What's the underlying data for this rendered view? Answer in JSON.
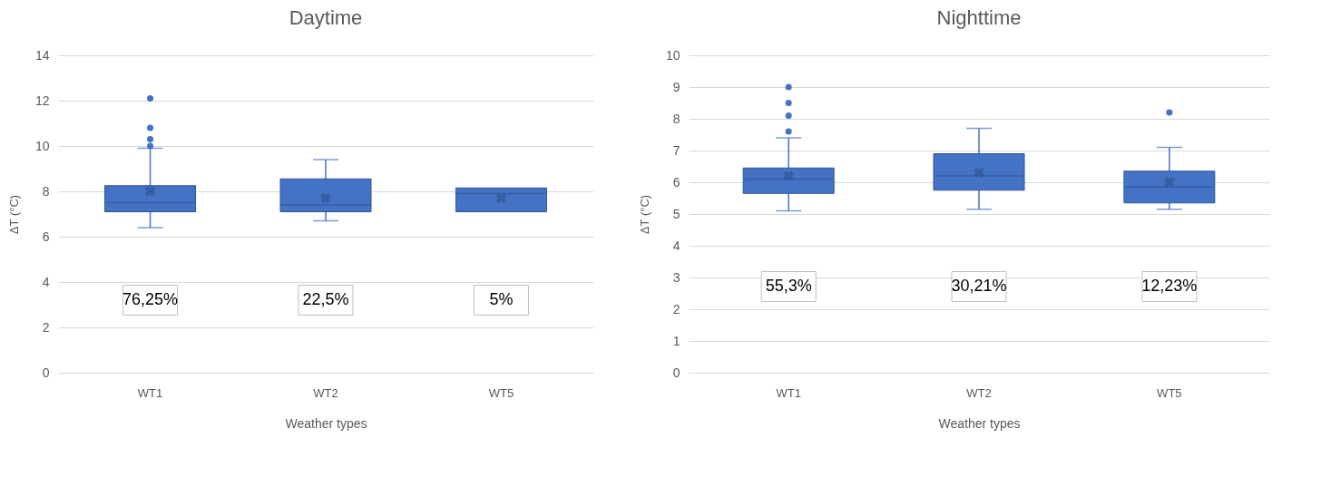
{
  "chart_data": [
    {
      "type": "box",
      "title": "Daytime",
      "xlabel": "Weather types",
      "ylabel": "ΔT (°C)",
      "categories": [
        "WT1",
        "WT2",
        "WT5"
      ],
      "color": "#4472c4",
      "ylim": [
        0,
        14
      ],
      "yticks": [
        0,
        2,
        4,
        6,
        8,
        10,
        12,
        14
      ],
      "grid": "y",
      "boxes": [
        {
          "low": 6.4,
          "q1": 7.1,
          "median": 7.5,
          "q3": 8.25,
          "high": 9.9,
          "mean": 8.0,
          "outliers": [
            10.0,
            10.3,
            10.8,
            12.1
          ]
        },
        {
          "low": 6.7,
          "q1": 7.1,
          "median": 7.4,
          "q3": 8.55,
          "high": 9.4,
          "mean": 7.7
        },
        {
          "low": 7.1,
          "q1": 7.1,
          "median": 7.9,
          "q3": 8.15,
          "high": 8.15,
          "mean": 7.7
        }
      ],
      "annotations": [
        "76,25%",
        "22,5%",
        "5%"
      ]
    },
    {
      "type": "box",
      "title": "Nighttime",
      "xlabel": "Weather types",
      "ylabel": "ΔT (°C)",
      "categories": [
        "WT1",
        "WT2",
        "WT5"
      ],
      "color": "#4472c4",
      "ylim": [
        0,
        10
      ],
      "yticks": [
        0,
        1,
        2,
        3,
        4,
        5,
        6,
        7,
        8,
        9,
        10
      ],
      "grid": "y",
      "boxes": [
        {
          "low": 5.1,
          "q1": 5.65,
          "median": 6.1,
          "q3": 6.45,
          "high": 7.4,
          "mean": 6.2,
          "outliers": [
            7.6,
            8.1,
            8.5,
            9.0
          ]
        },
        {
          "low": 5.15,
          "q1": 5.75,
          "median": 6.2,
          "q3": 6.9,
          "high": 7.7,
          "mean": 6.3
        },
        {
          "low": 5.15,
          "q1": 5.35,
          "median": 5.85,
          "q3": 6.35,
          "high": 7.1,
          "mean": 6.0,
          "outliers": [
            8.2
          ]
        }
      ],
      "annotations": [
        "55,3%",
        "30,21%",
        "12,23%"
      ]
    }
  ]
}
